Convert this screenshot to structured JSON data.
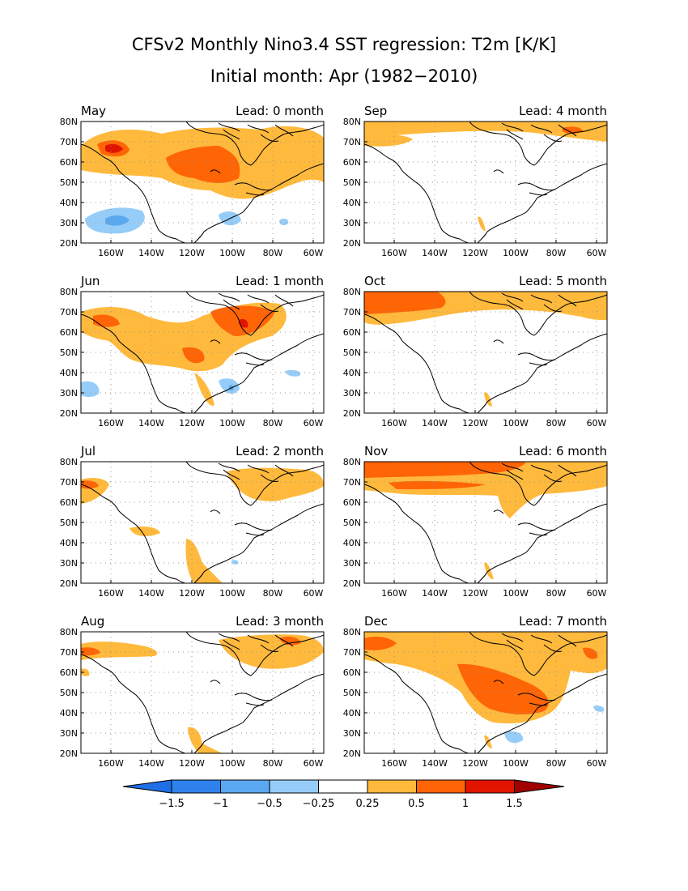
{
  "figure": {
    "title": "CFSv2 Monthly Nino3.4 SST regression: T2m [K/K]",
    "subtitle": "Initial month: Apr (1982−2010)"
  },
  "axes": {
    "lat_labels": [
      "80N",
      "70N",
      "60N",
      "50N",
      "40N",
      "30N",
      "20N"
    ],
    "lon_labels": [
      "160W",
      "140W",
      "120W",
      "100W",
      "80W",
      "60W"
    ]
  },
  "panels": [
    {
      "month": "May",
      "lead": "Lead: 0 month"
    },
    {
      "month": "Sep",
      "lead": "Lead: 4 month"
    },
    {
      "month": "Jun",
      "lead": "Lead: 1 month"
    },
    {
      "month": "Oct",
      "lead": "Lead: 5 month"
    },
    {
      "month": "Jul",
      "lead": "Lead: 2 month"
    },
    {
      "month": "Nov",
      "lead": "Lead: 6 month"
    },
    {
      "month": "Aug",
      "lead": "Lead: 3 month"
    },
    {
      "month": "Dec",
      "lead": "Lead: 7 month"
    }
  ],
  "colorbar": {
    "labels": [
      "−1.5",
      "−1",
      "−0.5",
      "−0.25",
      "0.25",
      "0.5",
      "1",
      "1.5"
    ],
    "colors": [
      "#1e6ee6",
      "#2f82ec",
      "#5aa8f0",
      "#96cdf8",
      "#ffffff",
      "#ffb93c",
      "#ff6405",
      "#e11400",
      "#a00000"
    ]
  },
  "shading_colors": {
    "pos1": "#ffb93c",
    "pos2": "#ff6405",
    "pos3": "#e11400",
    "neg1": "#96cdf8",
    "neg2": "#5aa8f0"
  }
}
